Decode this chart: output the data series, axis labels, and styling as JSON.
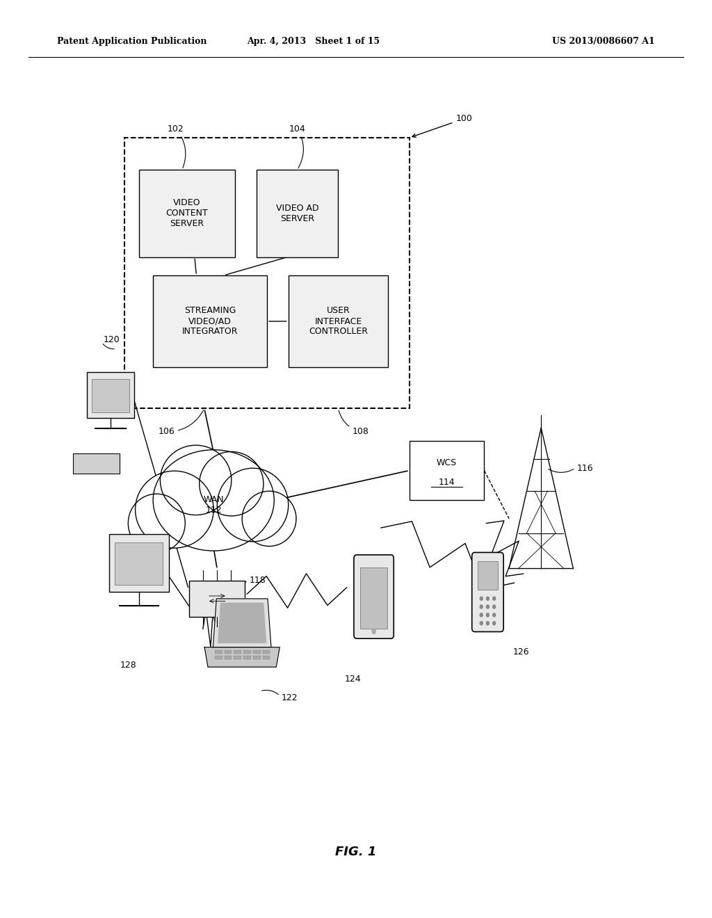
{
  "bg_color": "#ffffff",
  "header_left": "Patent Application Publication",
  "header_center": "Apr. 4, 2013   Sheet 1 of 15",
  "header_right": "US 2013/0086607 A1",
  "fig_caption": "FIG. 1"
}
